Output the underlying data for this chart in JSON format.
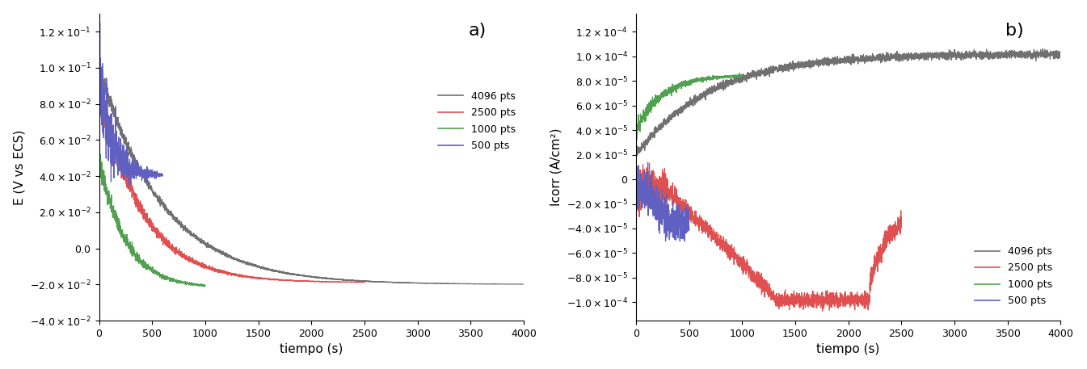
{
  "fig_width": 13.45,
  "fig_height": 4.57,
  "dpi": 100,
  "panel_a": {
    "label": "a)",
    "xlabel": "tiempo (s)",
    "ylabel": "E (V vs ECS)",
    "xlim": [
      0,
      4000
    ],
    "ylim": [
      -0.04,
      0.13
    ],
    "yticks": [
      -0.04,
      -0.02,
      0.0,
      0.02,
      0.04,
      0.06,
      0.08,
      0.1,
      0.12
    ],
    "ytick_labels": [
      "-4.0x10-2",
      "-2.0x10-2",
      "0.0",
      "2.0x10-2",
      "4.0x10-2",
      "6.0x10-2",
      "8.0x10-2",
      "1.0x10-1",
      "1.2x10-1"
    ],
    "xticks": [
      0,
      500,
      1000,
      1500,
      2000,
      2500,
      3000,
      3500,
      4000
    ],
    "legend_labels": [
      "4096 pts",
      "2500 pts",
      "1000 pts",
      "500 pts"
    ],
    "legend_colors": [
      "#707070",
      "#e05050",
      "#50a050",
      "#6060c0"
    ],
    "legend_loc": "center right"
  },
  "panel_b": {
    "label": "b)",
    "xlabel": "tiempo (s)",
    "ylabel": "Icorr (A/cm²)",
    "xlim": [
      0,
      4000
    ],
    "ylim": [
      -0.000115,
      0.000135
    ],
    "yticks": [
      -0.0001,
      -8e-05,
      -6e-05,
      -4e-05,
      -2e-05,
      0.0,
      2e-05,
      4e-05,
      6e-05,
      8e-05,
      0.0001,
      0.00012
    ],
    "ytick_labels": [
      "-1.0x10-4",
      "-8.0x10-5",
      "-6.0x10-5",
      "-4.0x10-5",
      "-2.0x10-5",
      "0",
      "2.0x10-5",
      "4.0x10-5",
      "6.0x10-5",
      "8.0x10-5",
      "1.0x10-4",
      "1.2x10-4"
    ],
    "xticks": [
      0,
      500,
      1000,
      1500,
      2000,
      2500,
      3000,
      3500,
      4000
    ],
    "legend_labels": [
      "4096 pts",
      "2500 pts",
      "1000 pts",
      "500 pts"
    ],
    "legend_colors": [
      "#707070",
      "#e05050",
      "#50a050",
      "#6060c0"
    ],
    "legend_loc": "lower right"
  },
  "colors": {
    "4096": "#707070",
    "2500": "#e05050",
    "1000": "#50a050",
    "500": "#6060c0"
  },
  "background_color": "#ffffff"
}
